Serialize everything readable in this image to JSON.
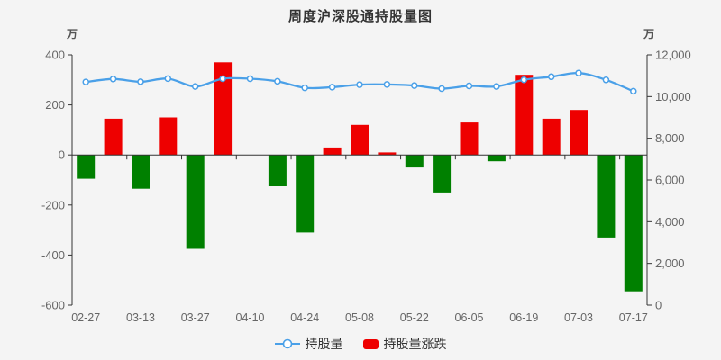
{
  "title": "周度沪深股通持股量图",
  "axes": {
    "left_unit": "万",
    "right_unit": "万"
  },
  "legend": {
    "line_label": "持股量",
    "bar_label": "持股量涨跌"
  },
  "colors": {
    "background": "#f4f4f4",
    "bar_positive": "#ee0000",
    "bar_negative": "#008000",
    "line": "#4aa0e8",
    "axis_line": "#333333",
    "axis_label": "#666666",
    "title_text": "#333333"
  },
  "chart_data": {
    "type": "combo-bar-line",
    "title": "周度沪深股通持股量图",
    "n_points": 21,
    "x_tick_labels": [
      "02-27",
      "03-13",
      "03-27",
      "04-10",
      "04-24",
      "05-08",
      "05-22",
      "06-05",
      "06-19",
      "07-03",
      "07-17"
    ],
    "x_label_every": 2,
    "grid": false,
    "legend_position": "bottom",
    "left_axis": {
      "unit": "万",
      "min": -600,
      "max": 400,
      "tick_labels": [
        "400",
        "200",
        "0",
        "-200",
        "-400",
        "-600"
      ],
      "tick_values": [
        400,
        200,
        0,
        -200,
        -400,
        -600
      ]
    },
    "right_axis": {
      "unit": "万",
      "min": 0,
      "max": 12000,
      "tick_labels": [
        "12,000",
        "10,000",
        "8,000",
        "6,000",
        "4,000",
        "2,000",
        "0"
      ],
      "tick_values": [
        12000,
        10000,
        8000,
        6000,
        4000,
        2000,
        0
      ]
    },
    "series": [
      {
        "name": "持股量",
        "type": "line",
        "y_axis": "right",
        "smooth": true,
        "color": "#4aa0e8",
        "values": [
          10700,
          10845,
          10710,
          10860,
          10485,
          10855,
          10855,
          10730,
          10420,
          10450,
          10570,
          10580,
          10530,
          10380,
          10510,
          10485,
          10805,
          10950,
          11130,
          10800,
          10255
        ]
      },
      {
        "name": "持股量涨跌",
        "type": "bar",
        "y_axis": "left",
        "color_positive": "#ee0000",
        "color_negative": "#008000",
        "values": [
          -95,
          145,
          -135,
          150,
          -375,
          370,
          0,
          -125,
          -310,
          30,
          120,
          10,
          -50,
          -150,
          130,
          -25,
          320,
          145,
          180,
          -330,
          -545
        ]
      }
    ]
  }
}
